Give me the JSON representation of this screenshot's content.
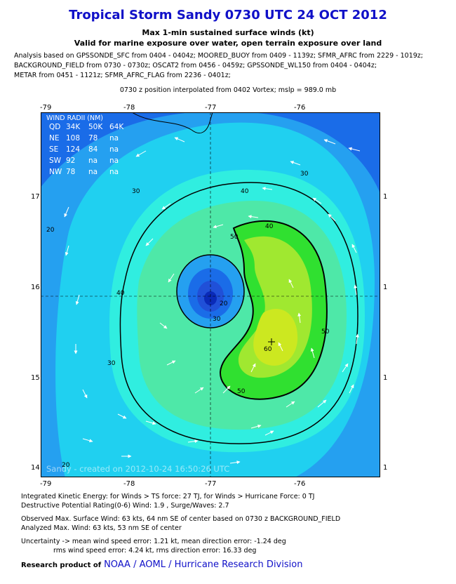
{
  "header": {
    "title": "Tropical Storm Sandy 0730 UTC 24 OCT 2012",
    "subtitle1": "Max 1-min sustained surface winds (kt)",
    "subtitle2": "Valid for marine exposure over water, open terrain exposure over land",
    "analysis_lines": [
      "Analysis based on GPSSONDE_SFC from 0404 - 0404z; MOORED_BUOY from 0409 - 1139z; SFMR_AFRC from 2229 - 1019z;",
      "BACKGROUND_FIELD from 0730 - 0730z; OSCAT2 from 0456 - 0459z; GPSSONDE_WL150 from 0404 - 0404z;",
      "METAR from 0451 - 1121z; SFMR_AFRC_FLAG from 2236 - 0401z;"
    ],
    "position_line": "0730 z position interpolated from 0402 Vortex; mslp = 989.0 mb"
  },
  "chart_data": {
    "type": "contour",
    "x_ticks": [
      "-79",
      "-78",
      "-77",
      "-76"
    ],
    "y_ticks_left": [
      "17",
      "16",
      "15",
      "14"
    ],
    "y_ticks_right": [
      "1",
      "1",
      "1",
      "1"
    ],
    "xlim": [
      -79.2,
      -75.1
    ],
    "ylim": [
      13.9,
      17.9
    ],
    "center": {
      "lon": -77.0,
      "lat": 15.9
    },
    "max_wind_location": {
      "lon": -76.35,
      "lat": 15.4
    },
    "contour_levels": [
      10,
      20,
      30,
      34,
      40,
      50,
      60
    ],
    "contour_labels": [
      "20",
      "30",
      "30",
      "40",
      "40",
      "40",
      "50",
      "50",
      "50",
      "60",
      "20",
      "30",
      "30",
      "20"
    ],
    "wind_radii": {
      "title": "WIND RADII (NM)",
      "header": [
        "QD",
        "34K",
        "50K",
        "64K"
      ],
      "rows": [
        [
          "NE",
          "108",
          "78",
          "na"
        ],
        [
          "SE",
          "124",
          "84",
          "na"
        ],
        [
          "SW",
          "92",
          "na",
          "na"
        ],
        [
          "NW",
          "78",
          "na",
          "na"
        ]
      ]
    },
    "credit": "Sandy - created on 2012-10-24 16:50:26 UTC"
  },
  "footer": {
    "ike": "Integrated Kinetic Energy: for Winds > TS force: 27 TJ, for Winds > Hurricane Force: 0 TJ",
    "dpr": "Destructive Potential Rating(0-6)  Wind: 1.9 , Surge/Waves: 2.7",
    "observed": "Observed Max. Surface Wind: 63 kts, 64 nm SE of center based on 0730 z BACKGROUND_FIELD",
    "analyzed": "Analyzed Max. Wind: 63 kts, 53 nm  SE of center",
    "uncertainty1": "Uncertainty -> mean wind speed error: 1.21 kt, mean direction error:  -1.24 deg",
    "uncertainty2": "rms wind speed error: 4.24 kt, rms direction error: 16.33 deg",
    "research_label": "Research product of",
    "org": "NOAA  /  AOML  /  Hurricane Research Division"
  },
  "colors": {
    "title": "#1010c8",
    "outer": "#1a6ce8",
    "level10": "#25a0f0",
    "level20": "#20d0f0",
    "level30": "#30eee0",
    "level40": "#4ee8a8",
    "level50": "#30e030",
    "level60": "#cce820",
    "center": "#0a2ab8"
  }
}
